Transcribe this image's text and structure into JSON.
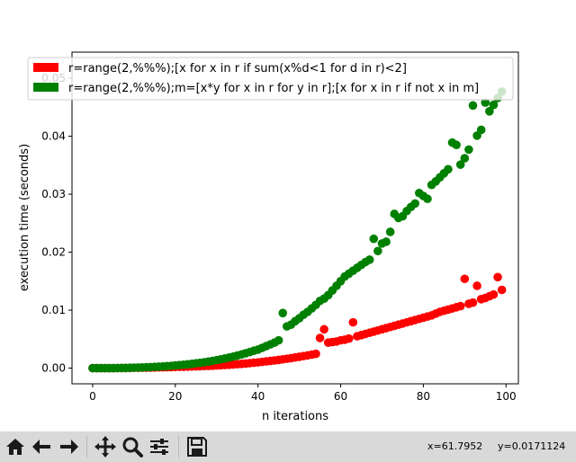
{
  "chart_data": {
    "type": "scatter",
    "xlabel": "n iterations",
    "ylabel": "execution time (seconds)",
    "xlim": [
      -5,
      103
    ],
    "ylim": [
      -0.0027,
      0.0545
    ],
    "x_ticks": [
      "0",
      "20",
      "40",
      "60",
      "80",
      "100"
    ],
    "y_ticks": [
      "0.00",
      "0.01",
      "0.02",
      "0.03",
      "0.04",
      "0.05"
    ],
    "legend_placement": "upper-left",
    "series": [
      {
        "name": "r=range(2,%%%);[x for x in r if sum(x%d<1 for d in r)<2]",
        "color": "#ff0000",
        "x": [
          0,
          1,
          2,
          3,
          4,
          5,
          6,
          7,
          8,
          9,
          10,
          11,
          12,
          13,
          14,
          15,
          16,
          17,
          18,
          19,
          20,
          21,
          22,
          23,
          24,
          25,
          26,
          27,
          28,
          29,
          30,
          31,
          32,
          33,
          34,
          35,
          36,
          37,
          38,
          39,
          40,
          41,
          42,
          43,
          44,
          45,
          46,
          47,
          48,
          49,
          50,
          51,
          52,
          53,
          54,
          55,
          56,
          57,
          58,
          59,
          60,
          61,
          62,
          63,
          64,
          65,
          66,
          67,
          68,
          69,
          70,
          71,
          72,
          73,
          74,
          75,
          76,
          77,
          78,
          79,
          80,
          81,
          82,
          83,
          84,
          85,
          86,
          87,
          88,
          89,
          90,
          91,
          92,
          93,
          94,
          95,
          96,
          97,
          98,
          99
        ],
        "y": [
          0.0,
          0.0,
          0.0,
          0.0,
          0.0,
          0.0,
          1e-05,
          2e-05,
          3e-05,
          4e-05,
          5e-05,
          6e-05,
          7e-05,
          8e-05,
          0.0001,
          0.00011,
          0.00013,
          0.00014,
          0.00016,
          0.00018,
          0.0002,
          0.00022,
          0.00024,
          0.00026,
          0.00028,
          0.00031,
          0.00033,
          0.00036,
          0.00039,
          0.00042,
          0.00046,
          0.0005,
          0.00054,
          0.00058,
          0.00063,
          0.00068,
          0.00074,
          0.0008,
          0.00086,
          0.00093,
          0.001,
          0.00108,
          0.00116,
          0.00124,
          0.00133,
          0.00142,
          0.00152,
          0.00162,
          0.00173,
          0.00184,
          0.00196,
          0.00208,
          0.0022,
          0.00233,
          0.00247,
          0.0052,
          0.0067,
          0.0044,
          0.0045,
          0.0046,
          0.0048,
          0.0049,
          0.0051,
          0.0079,
          0.0055,
          0.0057,
          0.0059,
          0.0061,
          0.0063,
          0.0065,
          0.0067,
          0.0069,
          0.0071,
          0.0073,
          0.0075,
          0.0077,
          0.0079,
          0.0081,
          0.0083,
          0.0085,
          0.0087,
          0.0089,
          0.0091,
          0.0094,
          0.0097,
          0.0099,
          0.0101,
          0.0103,
          0.0105,
          0.0107,
          0.0154,
          0.0111,
          0.0113,
          0.0142,
          0.0119,
          0.0121,
          0.0124,
          0.0127,
          0.0157,
          0.0135
        ]
      },
      {
        "name": "r=range(2,%%%);m=[x*y for x in r for y in r];[x for x in r if not x in m]",
        "color": "#008000",
        "x": [
          0,
          1,
          2,
          3,
          4,
          5,
          6,
          7,
          8,
          9,
          10,
          11,
          12,
          13,
          14,
          15,
          16,
          17,
          18,
          19,
          20,
          21,
          22,
          23,
          24,
          25,
          26,
          27,
          28,
          29,
          30,
          31,
          32,
          33,
          34,
          35,
          36,
          37,
          38,
          39,
          40,
          41,
          42,
          43,
          44,
          45,
          46,
          47,
          48,
          49,
          50,
          51,
          52,
          53,
          54,
          55,
          56,
          57,
          58,
          59,
          60,
          61,
          62,
          63,
          64,
          65,
          66,
          67,
          68,
          69,
          70,
          71,
          72,
          73,
          74,
          75,
          76,
          77,
          78,
          79,
          80,
          81,
          82,
          83,
          84,
          85,
          86,
          87,
          88,
          89,
          90,
          91,
          92,
          93,
          94,
          95,
          96,
          97,
          98,
          99
        ],
        "y": [
          0.0,
          0.0,
          0.0,
          0.0,
          0.0,
          1e-05,
          2e-05,
          3e-05,
          4e-05,
          6e-05,
          8e-05,
          0.0001,
          0.00012,
          0.00015,
          0.00018,
          0.00022,
          0.00026,
          0.0003,
          0.00035,
          0.0004,
          0.00046,
          0.00052,
          0.00059,
          0.00066,
          0.00074,
          0.00083,
          0.00092,
          0.00102,
          0.00113,
          0.00125,
          0.00138,
          0.00152,
          0.00167,
          0.00182,
          0.00199,
          0.00217,
          0.00236,
          0.00256,
          0.00277,
          0.003,
          0.0032,
          0.0035,
          0.0038,
          0.0041,
          0.0044,
          0.0048,
          0.0095,
          0.0072,
          0.0075,
          0.0081,
          0.0086,
          0.0092,
          0.0097,
          0.0103,
          0.0109,
          0.0116,
          0.012,
          0.0126,
          0.0134,
          0.0142,
          0.015,
          0.0158,
          0.0163,
          0.0168,
          0.0173,
          0.0178,
          0.0183,
          0.0187,
          0.0223,
          0.0202,
          0.0215,
          0.0218,
          0.0235,
          0.0266,
          0.0259,
          0.0262,
          0.0271,
          0.0278,
          0.0284,
          0.0302,
          0.0297,
          0.0292,
          0.0316,
          0.0322,
          0.0329,
          0.0336,
          0.0343,
          0.0389,
          0.0385,
          0.0351,
          0.0362,
          0.0377,
          0.0453,
          0.0401,
          0.0411,
          0.0458,
          0.0443,
          0.0454,
          0.0466,
          0.0477
        ]
      }
    ]
  },
  "toolbar": {
    "icons": [
      "home-icon",
      "back-arrow-icon",
      "forward-arrow-icon",
      "pan-icon",
      "zoom-icon",
      "configure-subplots-icon",
      "save-icon"
    ],
    "coords_x": "x=61.7952",
    "coords_y": "y=0.0171124"
  }
}
